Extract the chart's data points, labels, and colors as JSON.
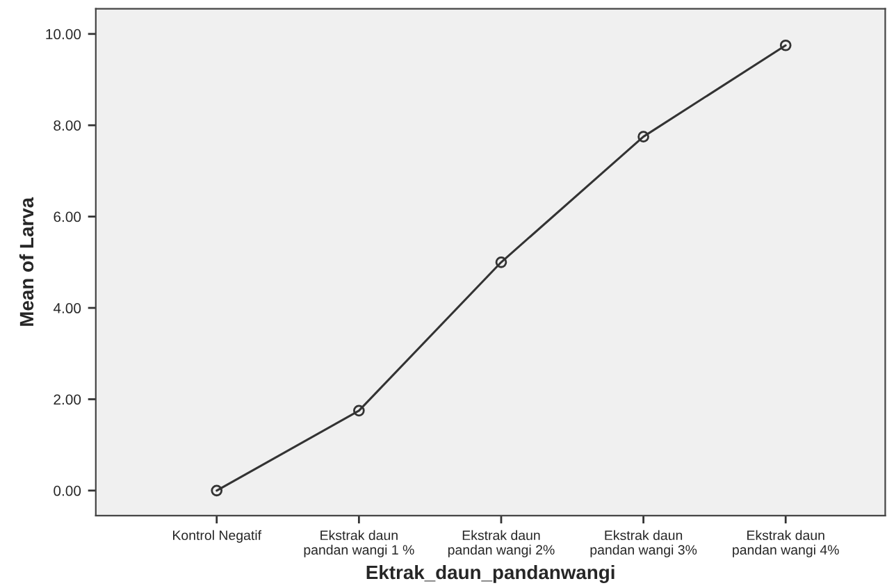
{
  "chart_data": {
    "type": "line",
    "categories": [
      "Kontrol Negatif",
      "Ekstrak daun\npandan wangi 1 %",
      "Ekstrak daun\npandan wangi 2%",
      "Ekstrak daun\npandan wangi 3%",
      "Ekstrak daun\npandan wangi 4%"
    ],
    "series": [
      {
        "color": "#333333",
        "values": [
          0,
          1.75,
          5.0,
          7.75,
          9.75
        ]
      }
    ],
    "xlabel": "Ektrak_daun_pandanwangi",
    "ylabel": "Mean of Larva",
    "ylim": [
      -0.55,
      10.55
    ],
    "yticks": [
      {
        "value": 0,
        "label": "0.00"
      },
      {
        "value": 2,
        "label": "2.00"
      },
      {
        "value": 4,
        "label": "4.00"
      },
      {
        "value": 6,
        "label": "6.00"
      },
      {
        "value": 8,
        "label": "8.00"
      },
      {
        "value": 10,
        "label": "10.00"
      }
    ],
    "marker": "circle",
    "line_style": "solid",
    "grid": false
  }
}
